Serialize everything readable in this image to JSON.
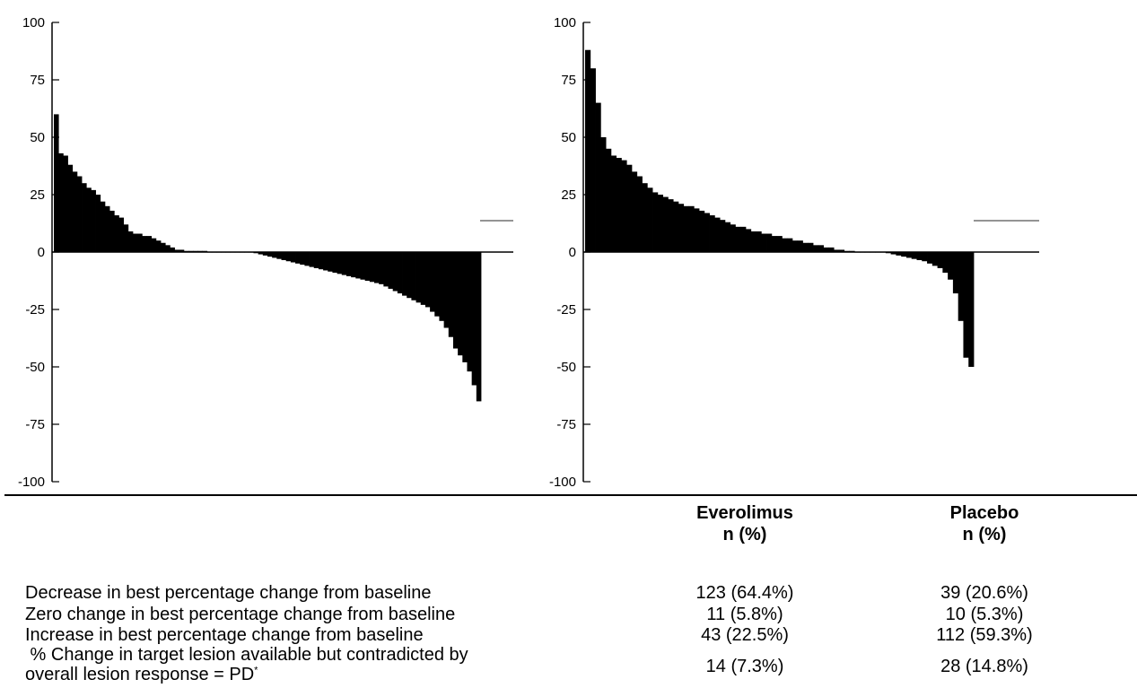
{
  "colors": {
    "bars": "#000000",
    "axis": "#000000",
    "background": "#ffffff"
  },
  "chart_data": [
    {
      "type": "bar",
      "title": "",
      "xlabel": "",
      "ylabel": "",
      "ylim": [
        -100,
        100
      ],
      "yticks": [
        "100",
        "75",
        "50",
        "25",
        "0",
        "-25",
        "-50",
        "-75",
        "-100"
      ],
      "grid": false,
      "sorted": "descending",
      "series": [
        {
          "values": [
            60,
            43,
            42,
            38,
            35,
            33,
            30,
            28,
            27,
            25,
            22,
            20,
            18,
            16,
            15,
            12,
            9,
            8,
            8,
            7,
            7,
            6,
            5,
            4,
            3,
            2,
            1,
            1,
            0.5,
            0.5,
            0.5,
            0.5,
            0.5,
            0,
            0,
            0,
            0,
            0,
            0,
            0,
            0,
            0,
            0,
            -0.5,
            -1,
            -1.5,
            -2,
            -2.5,
            -3,
            -3.5,
            -4,
            -4.5,
            -5,
            -5.5,
            -6,
            -6.5,
            -7,
            -7.5,
            -8,
            -8.5,
            -9,
            -9.5,
            -10,
            -10.5,
            -11,
            -11.5,
            -12,
            -12.5,
            -13,
            -13.5,
            -14,
            -15,
            -16,
            -17,
            -18,
            -19,
            -20,
            -21,
            -22,
            -23,
            -24,
            -26,
            -28,
            -30,
            -33,
            -37,
            -42,
            -45,
            -48,
            -52,
            -58,
            -65
          ]
        }
      ]
    },
    {
      "type": "bar",
      "title": "",
      "xlabel": "",
      "ylabel": "",
      "ylim": [
        -100,
        100
      ],
      "yticks": [
        "100",
        "75",
        "50",
        "25",
        "0",
        "-25",
        "-50",
        "-75",
        "-100"
      ],
      "grid": false,
      "sorted": "descending",
      "series": [
        {
          "values": [
            88,
            80,
            65,
            50,
            45,
            42,
            41,
            40,
            38,
            35,
            33,
            30,
            28,
            26,
            25,
            24,
            23,
            22,
            21,
            20,
            20,
            19,
            18,
            17,
            16,
            15,
            14,
            13,
            12,
            11,
            11,
            10,
            9,
            9,
            8,
            8,
            7,
            7,
            6,
            6,
            5,
            5,
            4,
            4,
            3,
            3,
            2,
            2,
            1,
            1,
            0.5,
            0.5,
            0,
            0,
            0,
            0,
            0,
            0,
            -0.5,
            -1,
            -1.5,
            -2,
            -2.5,
            -3,
            -3.5,
            -4,
            -5,
            -6,
            -7,
            -9,
            -12,
            -18,
            -30,
            -46,
            -50
          ]
        }
      ]
    }
  ],
  "table": {
    "headers": [
      {
        "name": "Everolimus",
        "sub": "n (%)"
      },
      {
        "name": "Placebo",
        "sub": "n (%)"
      }
    ],
    "rows": [
      {
        "label": "Decrease in best percentage change from baseline",
        "everolimus": "123 (64.4%)",
        "placebo": "39 (20.6%)"
      },
      {
        "label": "Zero change in best percentage change from baseline",
        "everolimus": "11 (5.8%)",
        "placebo": "10 (5.3%)"
      },
      {
        "label": "Increase in best percentage change from baseline",
        "everolimus": "43 (22.5%)",
        "placebo": "112 (59.3%)"
      }
    ],
    "last_row": {
      "label_line1": " % Change in target lesion available but contradicted by",
      "label_line2": "overall lesion response = PD",
      "label_sup": "*",
      "everolimus": "14 (7.3%)",
      "placebo": "28 (14.8%)"
    }
  }
}
